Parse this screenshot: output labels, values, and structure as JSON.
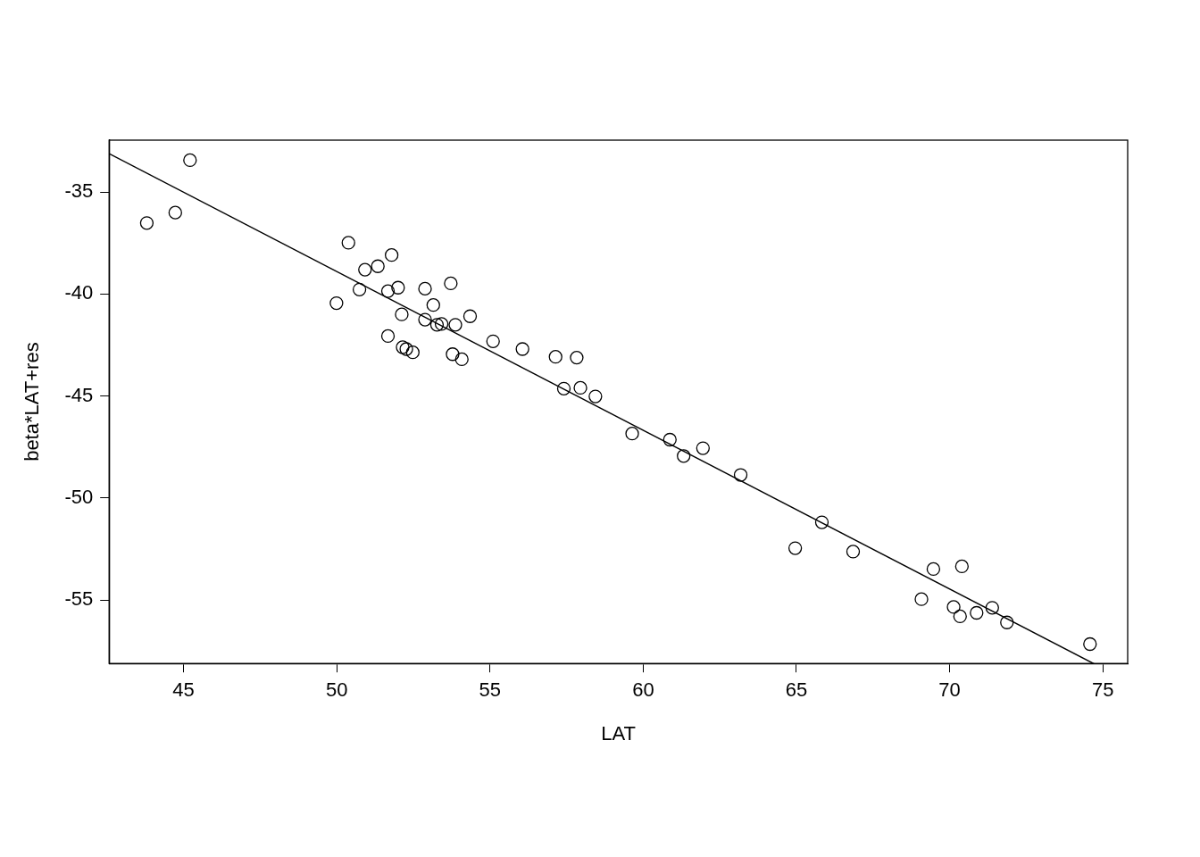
{
  "chart_data": {
    "type": "scatter",
    "x_label": "LAT",
    "y_label": "beta*LAT+res",
    "x": [
      43.8,
      44.73,
      45.21,
      49.99,
      50.38,
      50.74,
      50.92,
      51.34,
      51.67,
      51.67,
      51.79,
      52.0,
      52.12,
      52.15,
      52.27,
      52.48,
      52.88,
      52.88,
      53.15,
      53.27,
      53.42,
      53.72,
      53.78,
      53.87,
      54.08,
      54.35,
      55.1,
      56.06,
      57.14,
      57.41,
      57.83,
      57.95,
      58.44,
      59.64,
      60.87,
      61.32,
      61.95,
      63.18,
      64.96,
      65.83,
      66.85,
      69.08,
      69.47,
      70.13,
      70.34,
      70.4,
      70.88,
      71.39,
      71.87,
      74.58
    ],
    "y": [
      -36.52,
      -36.01,
      -33.44,
      -40.45,
      -37.49,
      -39.78,
      -38.81,
      -38.64,
      -39.86,
      -42.06,
      -38.09,
      -39.69,
      -41.0,
      -42.61,
      -42.7,
      -42.86,
      -39.74,
      -41.26,
      -40.54,
      -41.51,
      -41.47,
      -39.48,
      -42.95,
      -41.51,
      -43.2,
      -41.09,
      -42.32,
      -42.7,
      -43.08,
      -44.64,
      -43.12,
      -44.6,
      -45.02,
      -46.84,
      -47.14,
      -47.94,
      -47.56,
      -48.87,
      -52.46,
      -51.19,
      -52.63,
      -54.96,
      -53.48,
      -55.34,
      -55.8,
      -53.35,
      -55.63,
      -55.38,
      -56.1,
      -57.16
    ],
    "abline": {
      "intercept": 0,
      "slope": -0.778
    },
    "xlim": [
      42.57,
      75.81
    ],
    "ylim": [
      -58.11,
      -32.46
    ],
    "xticks": [
      45,
      50,
      55,
      60,
      65,
      70,
      75
    ],
    "yticks": [
      -55,
      -50,
      -45,
      -40,
      -35
    ],
    "grid": false,
    "marker": "circle",
    "color": "#000000"
  }
}
